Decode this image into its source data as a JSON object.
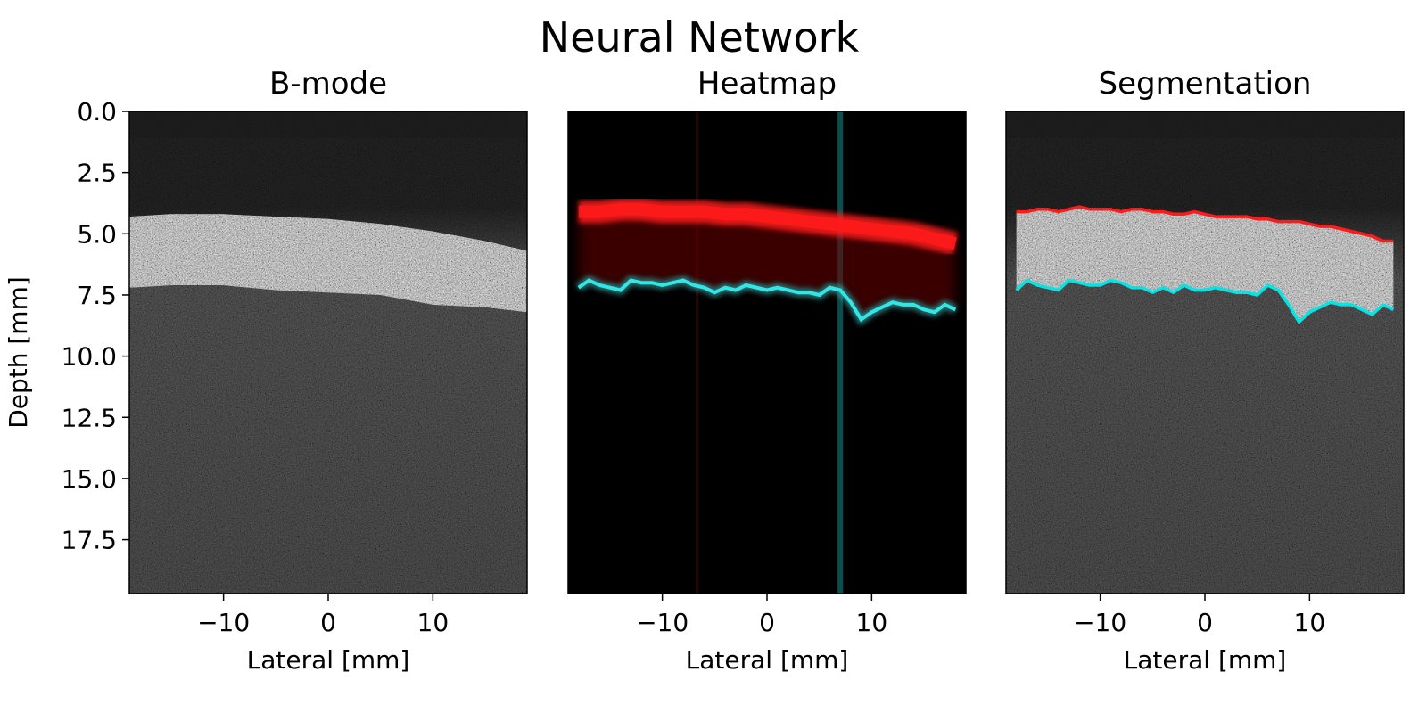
{
  "figure": {
    "title": "Neural Network"
  },
  "chart_data": [
    {
      "type": "heatmap",
      "panel": "bmode",
      "title": "B-mode",
      "xlabel": "Lateral [mm]",
      "ylabel": "Depth [mm]",
      "xlim": [
        -19,
        19
      ],
      "ylim": [
        0,
        19.7
      ],
      "y_inverted": true,
      "xticks": [
        "−10",
        "0",
        "10"
      ],
      "xtick_values": [
        -10,
        0,
        10
      ],
      "yticks": [
        "0.0",
        "2.5",
        "5.0",
        "7.5",
        "10.0",
        "12.5",
        "15.0",
        "17.5"
      ],
      "ytick_values": [
        0,
        2.5,
        5,
        7.5,
        10,
        12.5,
        15,
        17.5
      ],
      "colormap": "gray",
      "bright_layer": {
        "lateral": [
          -19,
          -15,
          -10,
          -5,
          0,
          5,
          10,
          15,
          19
        ],
        "top_depth": [
          4.3,
          4.2,
          4.2,
          4.3,
          4.4,
          4.6,
          4.9,
          5.3,
          5.7
        ],
        "bottom_depth": [
          7.2,
          7.1,
          7.1,
          7.3,
          7.4,
          7.5,
          7.9,
          8.0,
          8.2
        ]
      }
    },
    {
      "type": "heatmap",
      "panel": "heatmap",
      "title": "Heatmap",
      "xlabel": "Lateral [mm]",
      "xlim": [
        -19,
        19
      ],
      "ylim": [
        0,
        19.7
      ],
      "y_inverted": true,
      "xticks": [
        "−10",
        "0",
        "10"
      ],
      "xtick_values": [
        -10,
        0,
        10
      ],
      "background": "#000000",
      "series": [
        {
          "color": "#ff1a1a",
          "x": [
            -18,
            -16,
            -14,
            -12,
            -10,
            -8,
            -6,
            -4,
            -2,
            0,
            2,
            4,
            6,
            8,
            10,
            12,
            14,
            16,
            18
          ],
          "y": [
            4.1,
            4.1,
            4.0,
            4.0,
            4.1,
            4.1,
            4.1,
            4.2,
            4.2,
            4.3,
            4.4,
            4.5,
            4.6,
            4.7,
            4.8,
            4.9,
            5.0,
            5.2,
            5.4
          ]
        },
        {
          "color": "#33e6e6",
          "x": [
            -18,
            -17,
            -16,
            -15,
            -14,
            -13,
            -12,
            -11,
            -10,
            -9,
            -8,
            -7,
            -6,
            -5,
            -4,
            -3,
            -2,
            -1,
            0,
            1,
            2,
            3,
            4,
            5,
            6,
            7,
            8,
            9,
            10,
            11,
            12,
            13,
            14,
            15,
            16,
            17,
            18
          ],
          "y": [
            7.2,
            6.9,
            7.1,
            7.2,
            7.3,
            6.9,
            7.0,
            7.0,
            7.1,
            7.0,
            6.9,
            7.1,
            7.2,
            7.4,
            7.2,
            7.3,
            7.1,
            7.2,
            7.3,
            7.2,
            7.3,
            7.4,
            7.4,
            7.5,
            7.2,
            7.3,
            7.8,
            8.5,
            8.2,
            8.0,
            7.8,
            7.9,
            7.9,
            8.1,
            8.2,
            7.9,
            8.1
          ]
        }
      ]
    },
    {
      "type": "heatmap",
      "panel": "segmentation",
      "title": "Segmentation",
      "xlabel": "Lateral [mm]",
      "xlim": [
        -19,
        19
      ],
      "ylim": [
        0,
        19.7
      ],
      "y_inverted": true,
      "xticks": [
        "−10",
        "0",
        "10"
      ],
      "xtick_values": [
        -10,
        0,
        10
      ],
      "colormap": "gray",
      "series": [
        {
          "color": "#ff1a1a",
          "x": [
            -18,
            -17,
            -16,
            -15,
            -14,
            -13,
            -12,
            -11,
            -10,
            -9,
            -8,
            -7,
            -6,
            -5,
            -4,
            -3,
            -2,
            -1,
            0,
            1,
            2,
            3,
            4,
            5,
            6,
            7,
            8,
            9,
            10,
            11,
            12,
            13,
            14,
            15,
            16,
            17,
            18
          ],
          "y": [
            4.1,
            4.1,
            4.0,
            4.0,
            4.1,
            4.0,
            3.9,
            4.0,
            4.0,
            4.0,
            4.1,
            4.0,
            4.0,
            4.1,
            4.1,
            4.2,
            4.2,
            4.1,
            4.2,
            4.3,
            4.3,
            4.3,
            4.3,
            4.4,
            4.4,
            4.5,
            4.5,
            4.5,
            4.6,
            4.7,
            4.7,
            4.8,
            4.9,
            5.0,
            5.1,
            5.3,
            5.3
          ]
        },
        {
          "color": "#00e6e6",
          "x": [
            -18,
            -17,
            -16,
            -15,
            -14,
            -13,
            -12,
            -11,
            -10,
            -9,
            -8,
            -7,
            -6,
            -5,
            -4,
            -3,
            -2,
            -1,
            0,
            1,
            2,
            3,
            4,
            5,
            6,
            7,
            8,
            9,
            10,
            11,
            12,
            13,
            14,
            15,
            16,
            17,
            18
          ],
          "y": [
            7.3,
            6.9,
            7.1,
            7.2,
            7.3,
            6.9,
            7.0,
            7.1,
            7.1,
            6.9,
            7.0,
            7.2,
            7.2,
            7.4,
            7.2,
            7.4,
            7.1,
            7.3,
            7.3,
            7.2,
            7.3,
            7.4,
            7.4,
            7.5,
            7.1,
            7.3,
            7.9,
            8.6,
            8.2,
            8.0,
            7.8,
            7.9,
            7.9,
            8.1,
            8.3,
            7.9,
            8.1
          ]
        }
      ]
    }
  ]
}
